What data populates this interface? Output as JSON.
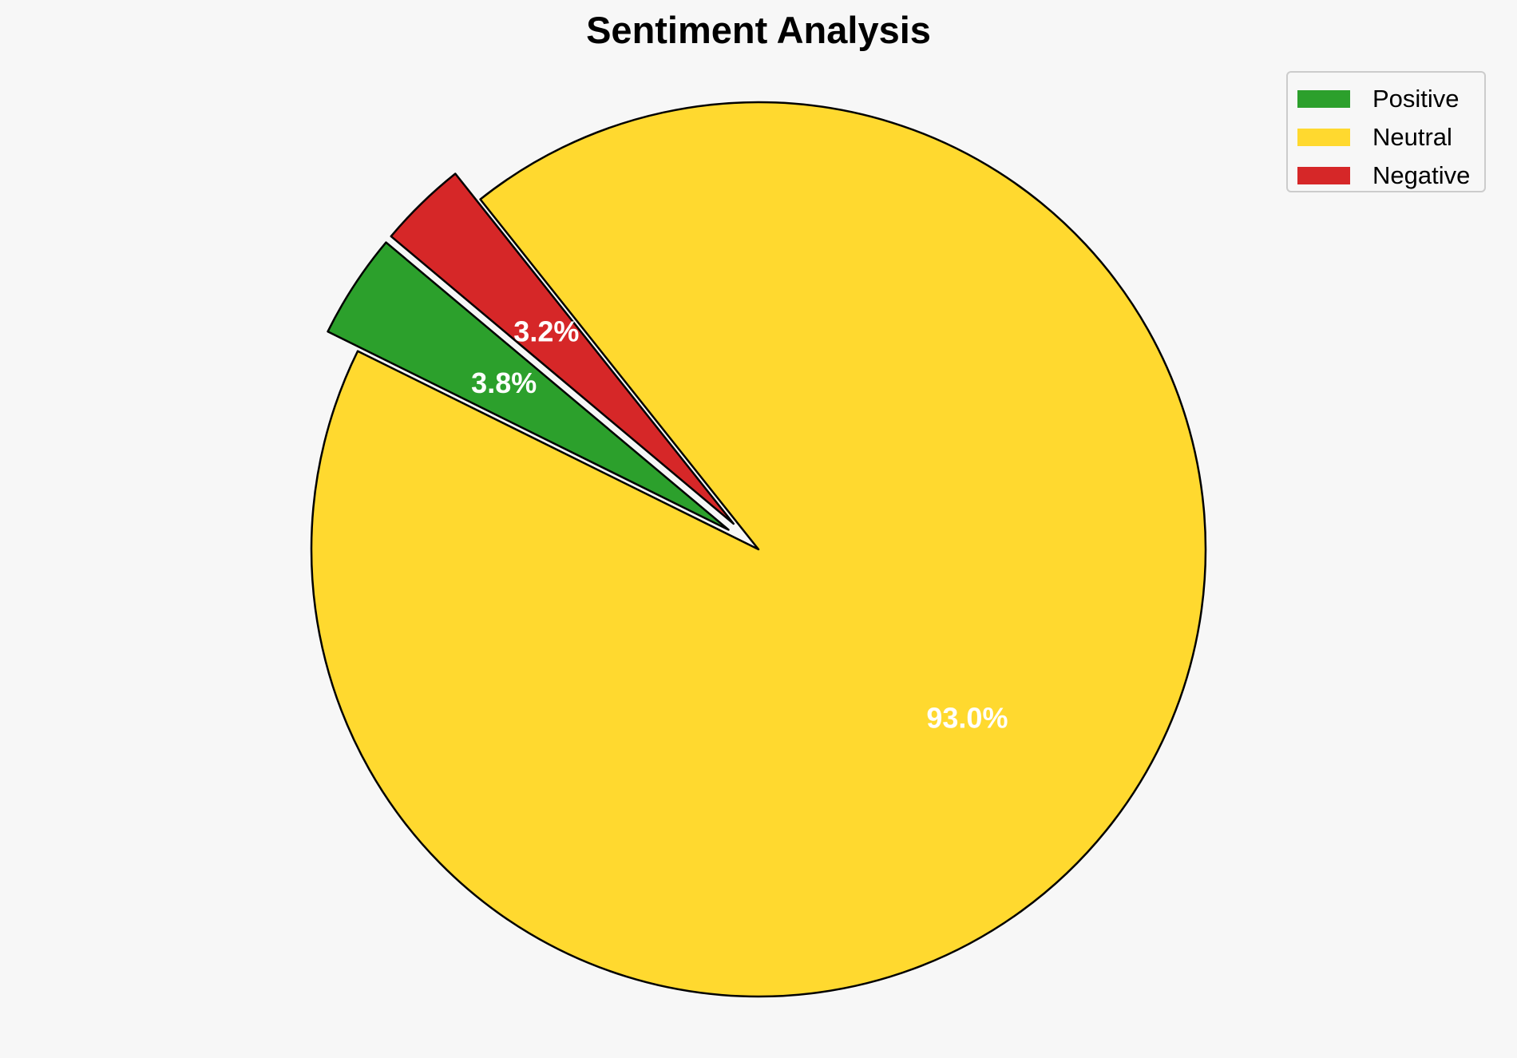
{
  "chart_data": {
    "type": "pie",
    "title": "Sentiment Analysis",
    "categories": [
      "Positive",
      "Neutral",
      "Negative"
    ],
    "values": [
      3.8,
      93.0,
      3.2
    ],
    "value_labels": [
      "3.8%",
      "93.0%",
      "3.2%"
    ],
    "colors": [
      "#2ca02c",
      "#ffd92f",
      "#d62728"
    ],
    "exploded": [
      true,
      false,
      true
    ],
    "edge_color": "#000000",
    "label_color": "#ffffff",
    "legend_position": "top-right"
  }
}
